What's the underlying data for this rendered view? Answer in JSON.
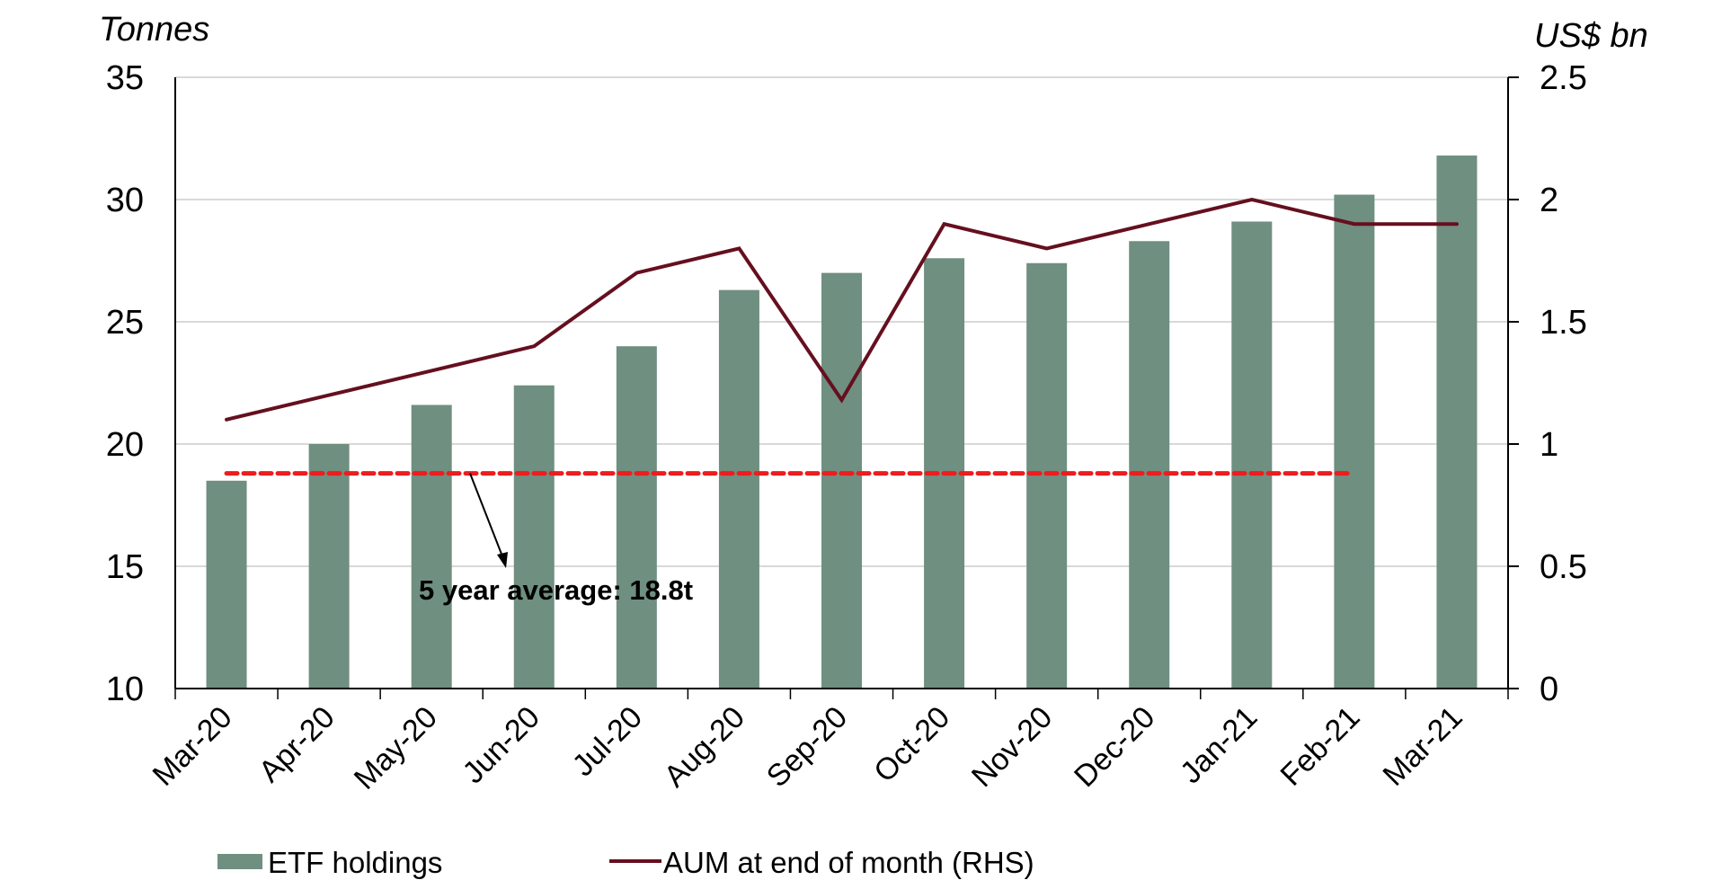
{
  "chart_data": {
    "type": "bar",
    "title": "",
    "xlabel": "",
    "ylabel": "Tonnes",
    "y2label": "US$ bn",
    "categories": [
      "Mar-20",
      "Apr-20",
      "May-20",
      "Jun-20",
      "Jul-20",
      "Aug-20",
      "Sep-20",
      "Oct-20",
      "Nov-20",
      "Dec-20",
      "Jan-21",
      "Feb-21",
      "Mar-21"
    ],
    "series": [
      {
        "name": "ETF holdings",
        "type": "bar",
        "axis": "left",
        "color": "#6f8f80",
        "values": [
          18.5,
          20.0,
          21.6,
          22.4,
          24.0,
          26.3,
          27.0,
          27.6,
          27.4,
          28.3,
          29.1,
          30.2,
          31.8
        ]
      },
      {
        "name": "AUM at end of month (RHS)",
        "type": "line",
        "axis": "right",
        "color": "#650f1f",
        "values": [
          1.1,
          1.2,
          1.3,
          1.4,
          1.7,
          1.8,
          1.18,
          1.9,
          1.8,
          1.9,
          2.0,
          1.9,
          1.9
        ]
      }
    ],
    "reference_line": {
      "label": "5 year average: 18.8t",
      "value": 18.8,
      "axis": "left",
      "from_category": "Mar-20",
      "to_category": "Feb-21",
      "color": "#ee1c1c",
      "style": "dashed"
    },
    "ylim": [
      10,
      35
    ],
    "y2lim": [
      0,
      2.5
    ],
    "yticks": [
      "35",
      "30",
      "25",
      "20",
      "15",
      "10"
    ],
    "ytick_values": [
      35,
      30,
      25,
      20,
      15,
      10
    ],
    "y2ticks": [
      "2.5",
      "2",
      "1.5",
      "1",
      "0.5",
      "0"
    ],
    "y2tick_values": [
      2.5,
      2,
      1.5,
      1,
      0.5,
      0
    ],
    "grid": true,
    "grid_color": "#d9d9d9",
    "legend": {
      "position": "bottom",
      "entries": [
        "ETF holdings",
        "AUM at end of month (RHS)"
      ]
    }
  }
}
